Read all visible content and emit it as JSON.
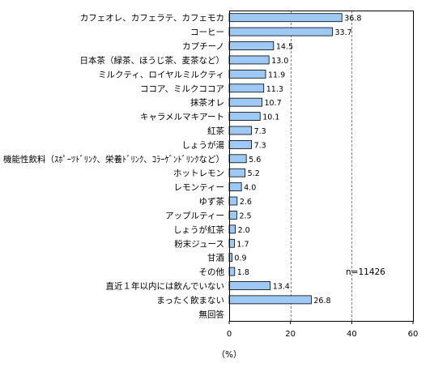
{
  "chart_data": {
    "type": "bar",
    "orientation": "horizontal",
    "categories": [
      "カフェオレ、カフェラテ、カフェモカ",
      "コーヒー",
      "カプチーノ",
      "日本茶（緑茶、ほうじ茶、麦茶など）",
      "ミルクティ、ロイヤルミルクティ",
      "ココア、ミルクココア",
      "抹茶オレ",
      "キャラメルマキアート",
      "紅茶",
      "しょうが湯",
      "機能性飲料（ｽﾎﾟｰﾂﾄﾞﾘﾝｸ、栄養ﾄﾞﾘﾝｸ、ｺﾗｰｹﾞﾝﾄﾞﾘﾝｸなど）",
      "ホットレモン",
      "レモンティー",
      "ゆず茶",
      "アップルティー",
      "しょうが紅茶",
      "粉末ジュース",
      "甘酒",
      "その他",
      "直近１年以内には飲んでいない",
      "まったく飲まない",
      "無回答"
    ],
    "values": [
      36.8,
      33.7,
      14.5,
      13.0,
      11.9,
      11.3,
      10.7,
      10.1,
      7.3,
      7.3,
      5.6,
      5.2,
      4.0,
      2.6,
      2.5,
      2.0,
      1.7,
      0.9,
      1.8,
      13.4,
      26.8,
      null
    ],
    "value_labels": [
      "36.8",
      "33.7",
      "14.5",
      "13.0",
      "11.9",
      "11.3",
      "10.7",
      "10.1",
      "7.3",
      "7.3",
      "5.6",
      "5.2",
      "4.0",
      "2.6",
      "2.5",
      "2.0",
      "1.7",
      "0.9",
      "1.8",
      "13.4",
      "26.8",
      ""
    ],
    "xlim": [
      0,
      60
    ],
    "xticks": [
      0,
      20,
      40,
      60
    ],
    "gridlines": [
      20,
      40
    ],
    "xlabel": "（%）",
    "annotation": "n=11426",
    "title": "",
    "colors": {
      "bar_fill": "#9ec9f5",
      "bar_stroke": "#000000",
      "gridline": "#808080",
      "frame": "#000000"
    }
  }
}
